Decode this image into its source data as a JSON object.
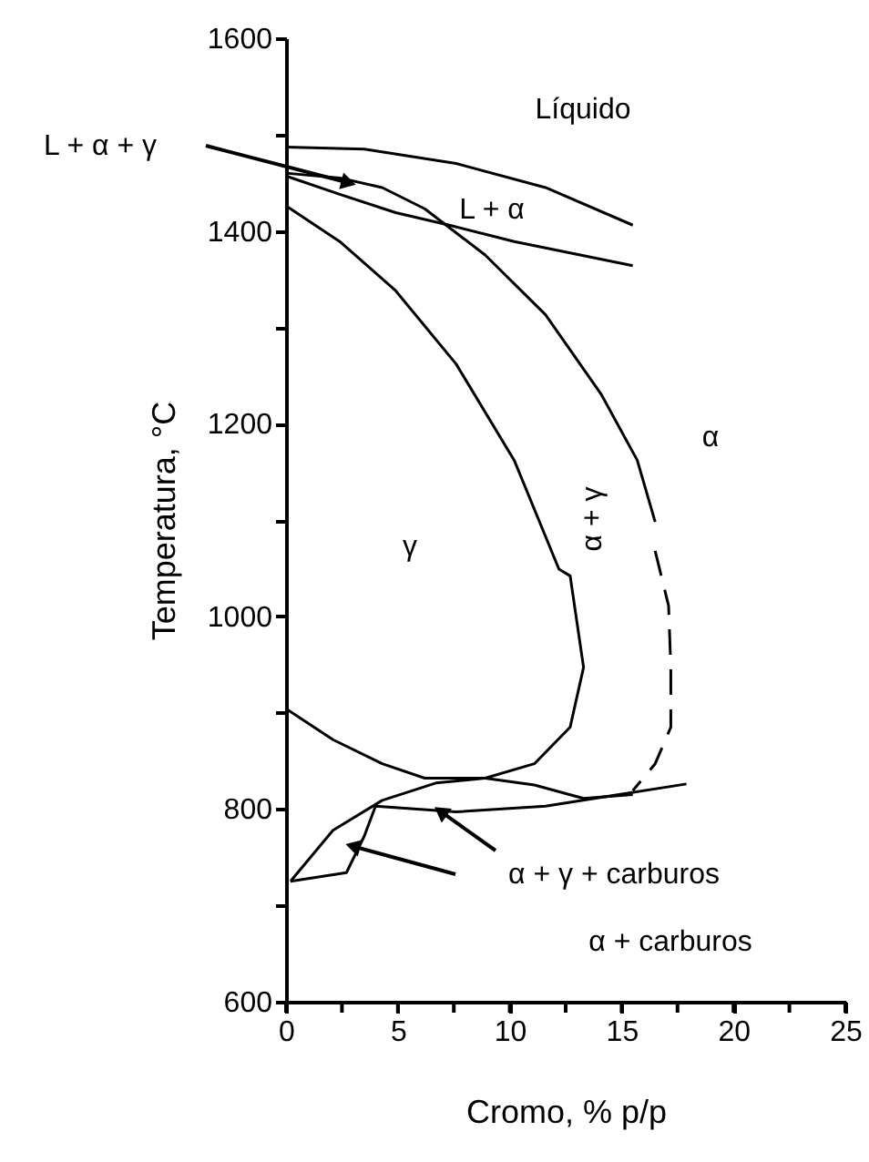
{
  "chart_data": {
    "type": "line",
    "xlabel": "Cromo,  % p/p",
    "ylabel": "Temperatura, °C",
    "xlim": [
      0,
      25
    ],
    "ylim": [
      600,
      1600
    ],
    "xticks": [
      0,
      {
        "value": 2.5,
        "label": null
      },
      5,
      {
        "value": 7.5,
        "label": null
      },
      10,
      {
        "value": 12.5,
        "label": null
      },
      15,
      {
        "value": 17.5,
        "label": null
      },
      20,
      {
        "value": 22.5,
        "label": null
      },
      25
    ],
    "yticks": [
      600,
      {
        "value": 700,
        "label": null
      },
      800,
      {
        "value": 900,
        "label": null
      },
      1000,
      {
        "value": 1100,
        "label": null
      },
      1200,
      {
        "value": 1300,
        "label": null
      },
      1400,
      {
        "value": 1500,
        "label": null
      },
      1600
    ],
    "grid": false,
    "marker": "none",
    "series": [
      {
        "color": "#000000",
        "x": [
          0,
          3.5,
          7.6,
          11.6,
          15.5
        ],
        "values": [
          1487,
          1485,
          1470,
          1445,
          1406
        ]
      },
      {
        "color": "#000000",
        "x": [
          0,
          2.4,
          4.9,
          7.3,
          10.2,
          15.5
        ],
        "values": [
          1457,
          1438,
          1419,
          1406,
          1389,
          1364
        ]
      },
      {
        "color": "#000000",
        "x": [
          0,
          2.4,
          4.3,
          6.2,
          8.9,
          11.6,
          14.1,
          15.7,
          16.5
        ],
        "values": [
          1460,
          1455,
          1445,
          1423,
          1375,
          1313,
          1230,
          1162,
          1098
        ]
      },
      {
        "color": "#000000",
        "line_style": "dashed",
        "x": [
          16.5,
          17.1,
          17.2,
          17.2,
          16.5,
          15.5
        ],
        "values": [
          1068,
          1011,
          947,
          885,
          847,
          819
        ]
      },
      {
        "color": "#000000",
        "x": [
          0,
          2.4,
          4.9,
          7.6,
          10.2,
          12.2,
          12.7,
          13.3,
          12.7,
          11.1,
          8.9,
          6.7,
          4.3,
          2.1,
          0.2
        ],
        "values": [
          1426,
          1389,
          1338,
          1262,
          1162,
          1049,
          1042,
          947,
          885,
          847,
          832,
          827,
          809,
          778,
          725
        ]
      },
      {
        "color": "#000000",
        "x": [
          0.2,
          2.7,
          3.5,
          4.0,
          7.6,
          11.6,
          14.3,
          17.9
        ],
        "values": [
          725,
          734,
          772,
          803,
          797,
          803,
          813,
          826
        ]
      },
      {
        "color": "#000000",
        "x": [
          0,
          2.1,
          4.3,
          6.2,
          8.9,
          11.1,
          13.3,
          15.5
        ],
        "values": [
          904,
          872,
          847,
          832,
          832,
          825,
          811,
          815
        ]
      }
    ],
    "annotations": [
      "Líquido",
      "L + α + γ",
      "L + α",
      "α",
      "γ",
      "α + γ",
      {
        "text": "α + γ + carburos",
        "x": 7.0,
        "y": 796
      },
      "α + carburos"
    ]
  }
}
